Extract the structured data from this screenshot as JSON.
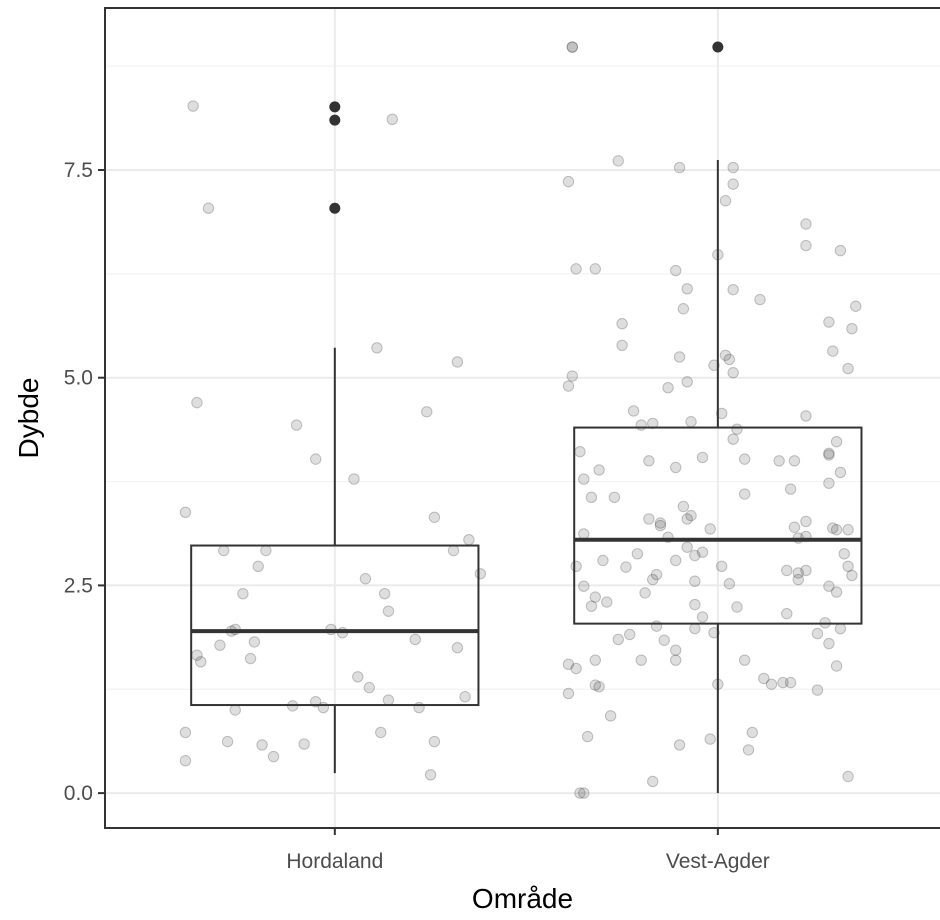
{
  "chart_data": {
    "type": "box",
    "xlabel": "Område",
    "ylabel": "Dybde",
    "categories": [
      "Hordaland",
      "Vest-Agder"
    ],
    "ylim": [
      -0.42,
      9.45
    ],
    "yticks": [
      0.0,
      2.5,
      5.0,
      7.5
    ],
    "ytick_labels": [
      "0.0",
      "2.5",
      "5.0",
      "7.5"
    ],
    "grid": true,
    "colors": {
      "box_line": "#333333",
      "median_line": "#333333",
      "outlier": "#333333",
      "jitter_point": "#333333",
      "grid_major": "#ebebeb",
      "grid_minor": "#f3f3f3",
      "panel_border": "#333333"
    },
    "boxes": [
      {
        "category": "Hordaland",
        "whisker_low": 0.24,
        "q1": 1.06,
        "median": 1.95,
        "q3": 2.98,
        "whisker_high": 5.36,
        "outliers": [
          7.04,
          8.1,
          8.26
        ]
      },
      {
        "category": "Vest-Agder",
        "whisker_low": 0.0,
        "q1": 2.04,
        "median": 3.05,
        "q3": 4.4,
        "whisker_high": 7.62,
        "outliers": [
          8.98
        ]
      }
    ],
    "jitter_points": [
      {
        "category": "Hordaland",
        "points": [
          [
            -0.37,
            8.27
          ],
          [
            -0.33,
            7.04
          ],
          [
            0.15,
            8.11
          ],
          [
            0.11,
            5.36
          ],
          [
            0.32,
            5.19
          ],
          [
            -0.36,
            4.7
          ],
          [
            0.24,
            4.59
          ],
          [
            -0.1,
            4.43
          ],
          [
            -0.05,
            4.02
          ],
          [
            0.05,
            3.78
          ],
          [
            -0.39,
            3.38
          ],
          [
            0.26,
            3.32
          ],
          [
            0.35,
            3.05
          ],
          [
            -0.29,
            2.92
          ],
          [
            -0.18,
            2.92
          ],
          [
            0.31,
            2.92
          ],
          [
            -0.2,
            2.73
          ],
          [
            0.38,
            2.64
          ],
          [
            0.08,
            2.58
          ],
          [
            -0.24,
            2.4
          ],
          [
            0.13,
            2.4
          ],
          [
            0.14,
            2.19
          ],
          [
            -0.26,
            1.97
          ],
          [
            -0.01,
            1.97
          ],
          [
            0.02,
            1.93
          ],
          [
            -0.27,
            1.95
          ],
          [
            0.21,
            1.85
          ],
          [
            -0.21,
            1.82
          ],
          [
            -0.3,
            1.78
          ],
          [
            0.32,
            1.75
          ],
          [
            -0.36,
            1.66
          ],
          [
            -0.35,
            1.58
          ],
          [
            -0.22,
            1.62
          ],
          [
            0.06,
            1.4
          ],
          [
            0.09,
            1.27
          ],
          [
            0.34,
            1.16
          ],
          [
            -0.05,
            1.1
          ],
          [
            0.14,
            1.12
          ],
          [
            -0.11,
            1.05
          ],
          [
            -0.03,
            1.03
          ],
          [
            0.22,
            1.03
          ],
          [
            -0.26,
            1.0
          ],
          [
            -0.39,
            0.73
          ],
          [
            0.12,
            0.73
          ],
          [
            -0.28,
            0.62
          ],
          [
            -0.19,
            0.58
          ],
          [
            -0.08,
            0.59
          ],
          [
            0.26,
            0.62
          ],
          [
            -0.16,
            0.44
          ],
          [
            -0.39,
            0.39
          ],
          [
            0.25,
            0.22
          ]
        ]
      },
      {
        "category": "Vest-Agder",
        "points": [
          [
            -0.38,
            8.98
          ],
          [
            -0.39,
            7.36
          ],
          [
            -0.26,
            7.61
          ],
          [
            -0.1,
            7.53
          ],
          [
            0.04,
            7.53
          ],
          [
            0.04,
            7.33
          ],
          [
            0.02,
            7.13
          ],
          [
            0.23,
            6.85
          ],
          [
            0.23,
            6.59
          ],
          [
            0.32,
            6.53
          ],
          [
            -0.37,
            6.31
          ],
          [
            -0.32,
            6.31
          ],
          [
            -0.11,
            6.29
          ],
          [
            0.0,
            6.48
          ],
          [
            -0.08,
            6.07
          ],
          [
            0.04,
            6.06
          ],
          [
            0.11,
            5.94
          ],
          [
            0.36,
            5.86
          ],
          [
            -0.25,
            5.65
          ],
          [
            -0.09,
            5.83
          ],
          [
            0.29,
            5.67
          ],
          [
            0.35,
            5.59
          ],
          [
            0.3,
            5.32
          ],
          [
            -0.25,
            5.39
          ],
          [
            -0.1,
            5.25
          ],
          [
            0.02,
            5.27
          ],
          [
            0.03,
            5.22
          ],
          [
            0.04,
            5.06
          ],
          [
            -0.01,
            5.15
          ],
          [
            0.34,
            5.11
          ],
          [
            -0.38,
            5.02
          ],
          [
            -0.39,
            4.9
          ],
          [
            -0.08,
            4.95
          ],
          [
            -0.13,
            4.88
          ],
          [
            -0.22,
            4.6
          ],
          [
            -0.2,
            4.43
          ],
          [
            -0.07,
            4.47
          ],
          [
            -0.17,
            4.45
          ],
          [
            0.01,
            4.57
          ],
          [
            0.23,
            4.54
          ],
          [
            0.05,
            4.38
          ],
          [
            -0.36,
            4.11
          ],
          [
            0.29,
            4.09
          ],
          [
            0.04,
            4.26
          ],
          [
            0.31,
            4.23
          ],
          [
            0.29,
            4.07
          ],
          [
            -0.04,
            4.04
          ],
          [
            -0.18,
            4.0
          ],
          [
            0.07,
            4.02
          ],
          [
            0.16,
            4.0
          ],
          [
            0.2,
            4.0
          ],
          [
            -0.31,
            3.89
          ],
          [
            -0.35,
            3.78
          ],
          [
            -0.11,
            3.92
          ],
          [
            0.32,
            3.86
          ],
          [
            0.29,
            3.73
          ],
          [
            0.19,
            3.66
          ],
          [
            0.07,
            3.6
          ],
          [
            -0.33,
            3.56
          ],
          [
            -0.27,
            3.56
          ],
          [
            -0.09,
            3.45
          ],
          [
            -0.18,
            3.3
          ],
          [
            -0.07,
            3.34
          ],
          [
            -0.08,
            3.3
          ],
          [
            -0.15,
            3.25
          ],
          [
            -0.15,
            3.22
          ],
          [
            0.23,
            3.27
          ],
          [
            0.2,
            3.2
          ],
          [
            0.3,
            3.19
          ],
          [
            0.31,
            3.17
          ],
          [
            0.34,
            3.17
          ],
          [
            -0.35,
            3.12
          ],
          [
            -0.13,
            3.08
          ],
          [
            -0.02,
            3.18
          ],
          [
            0.23,
            3.09
          ],
          [
            0.21,
            3.07
          ],
          [
            -0.08,
            2.96
          ],
          [
            -0.21,
            2.88
          ],
          [
            -0.04,
            2.9
          ],
          [
            -0.06,
            2.86
          ],
          [
            -0.11,
            2.8
          ],
          [
            0.33,
            2.88
          ],
          [
            -0.37,
            2.73
          ],
          [
            -0.3,
            2.8
          ],
          [
            -0.24,
            2.72
          ],
          [
            0.01,
            2.73
          ],
          [
            0.18,
            2.68
          ],
          [
            0.23,
            2.68
          ],
          [
            0.21,
            2.65
          ],
          [
            0.21,
            2.57
          ],
          [
            0.35,
            2.62
          ],
          [
            0.34,
            2.73
          ],
          [
            -0.16,
            2.63
          ],
          [
            -0.17,
            2.57
          ],
          [
            0.03,
            2.52
          ],
          [
            -0.35,
            2.49
          ],
          [
            -0.06,
            2.55
          ],
          [
            0.29,
            2.49
          ],
          [
            0.31,
            2.42
          ],
          [
            -0.19,
            2.41
          ],
          [
            -0.32,
            2.36
          ],
          [
            -0.29,
            2.3
          ],
          [
            -0.33,
            2.25
          ],
          [
            -0.06,
            2.27
          ],
          [
            0.05,
            2.24
          ],
          [
            0.18,
            2.16
          ],
          [
            -0.04,
            2.12
          ],
          [
            0.28,
            2.05
          ],
          [
            0.32,
            1.98
          ],
          [
            -0.16,
            2.01
          ],
          [
            -0.23,
            1.91
          ],
          [
            -0.26,
            1.85
          ],
          [
            -0.14,
            1.84
          ],
          [
            -0.01,
            1.93
          ],
          [
            -0.06,
            1.98
          ],
          [
            -0.11,
            1.72
          ],
          [
            0.29,
            1.8
          ],
          [
            0.26,
            1.92
          ],
          [
            -0.32,
            1.6
          ],
          [
            -0.39,
            1.55
          ],
          [
            -0.37,
            1.5
          ],
          [
            -0.2,
            1.6
          ],
          [
            -0.11,
            1.6
          ],
          [
            0.07,
            1.6
          ],
          [
            0.31,
            1.53
          ],
          [
            0.12,
            1.38
          ],
          [
            0.14,
            1.31
          ],
          [
            0.17,
            1.33
          ],
          [
            0.19,
            1.33
          ],
          [
            -0.32,
            1.3
          ],
          [
            -0.31,
            1.28
          ],
          [
            -0.39,
            1.2
          ],
          [
            0.0,
            1.31
          ],
          [
            0.26,
            1.24
          ],
          [
            -0.28,
            0.93
          ],
          [
            0.09,
            0.73
          ],
          [
            -0.34,
            0.68
          ],
          [
            -0.1,
            0.58
          ],
          [
            -0.02,
            0.65
          ],
          [
            0.08,
            0.52
          ],
          [
            -0.17,
            0.14
          ],
          [
            -0.36,
            0.0
          ],
          [
            -0.35,
            0.0
          ],
          [
            0.34,
            0.2
          ],
          [
            -0.38,
            8.98
          ]
        ]
      }
    ]
  }
}
